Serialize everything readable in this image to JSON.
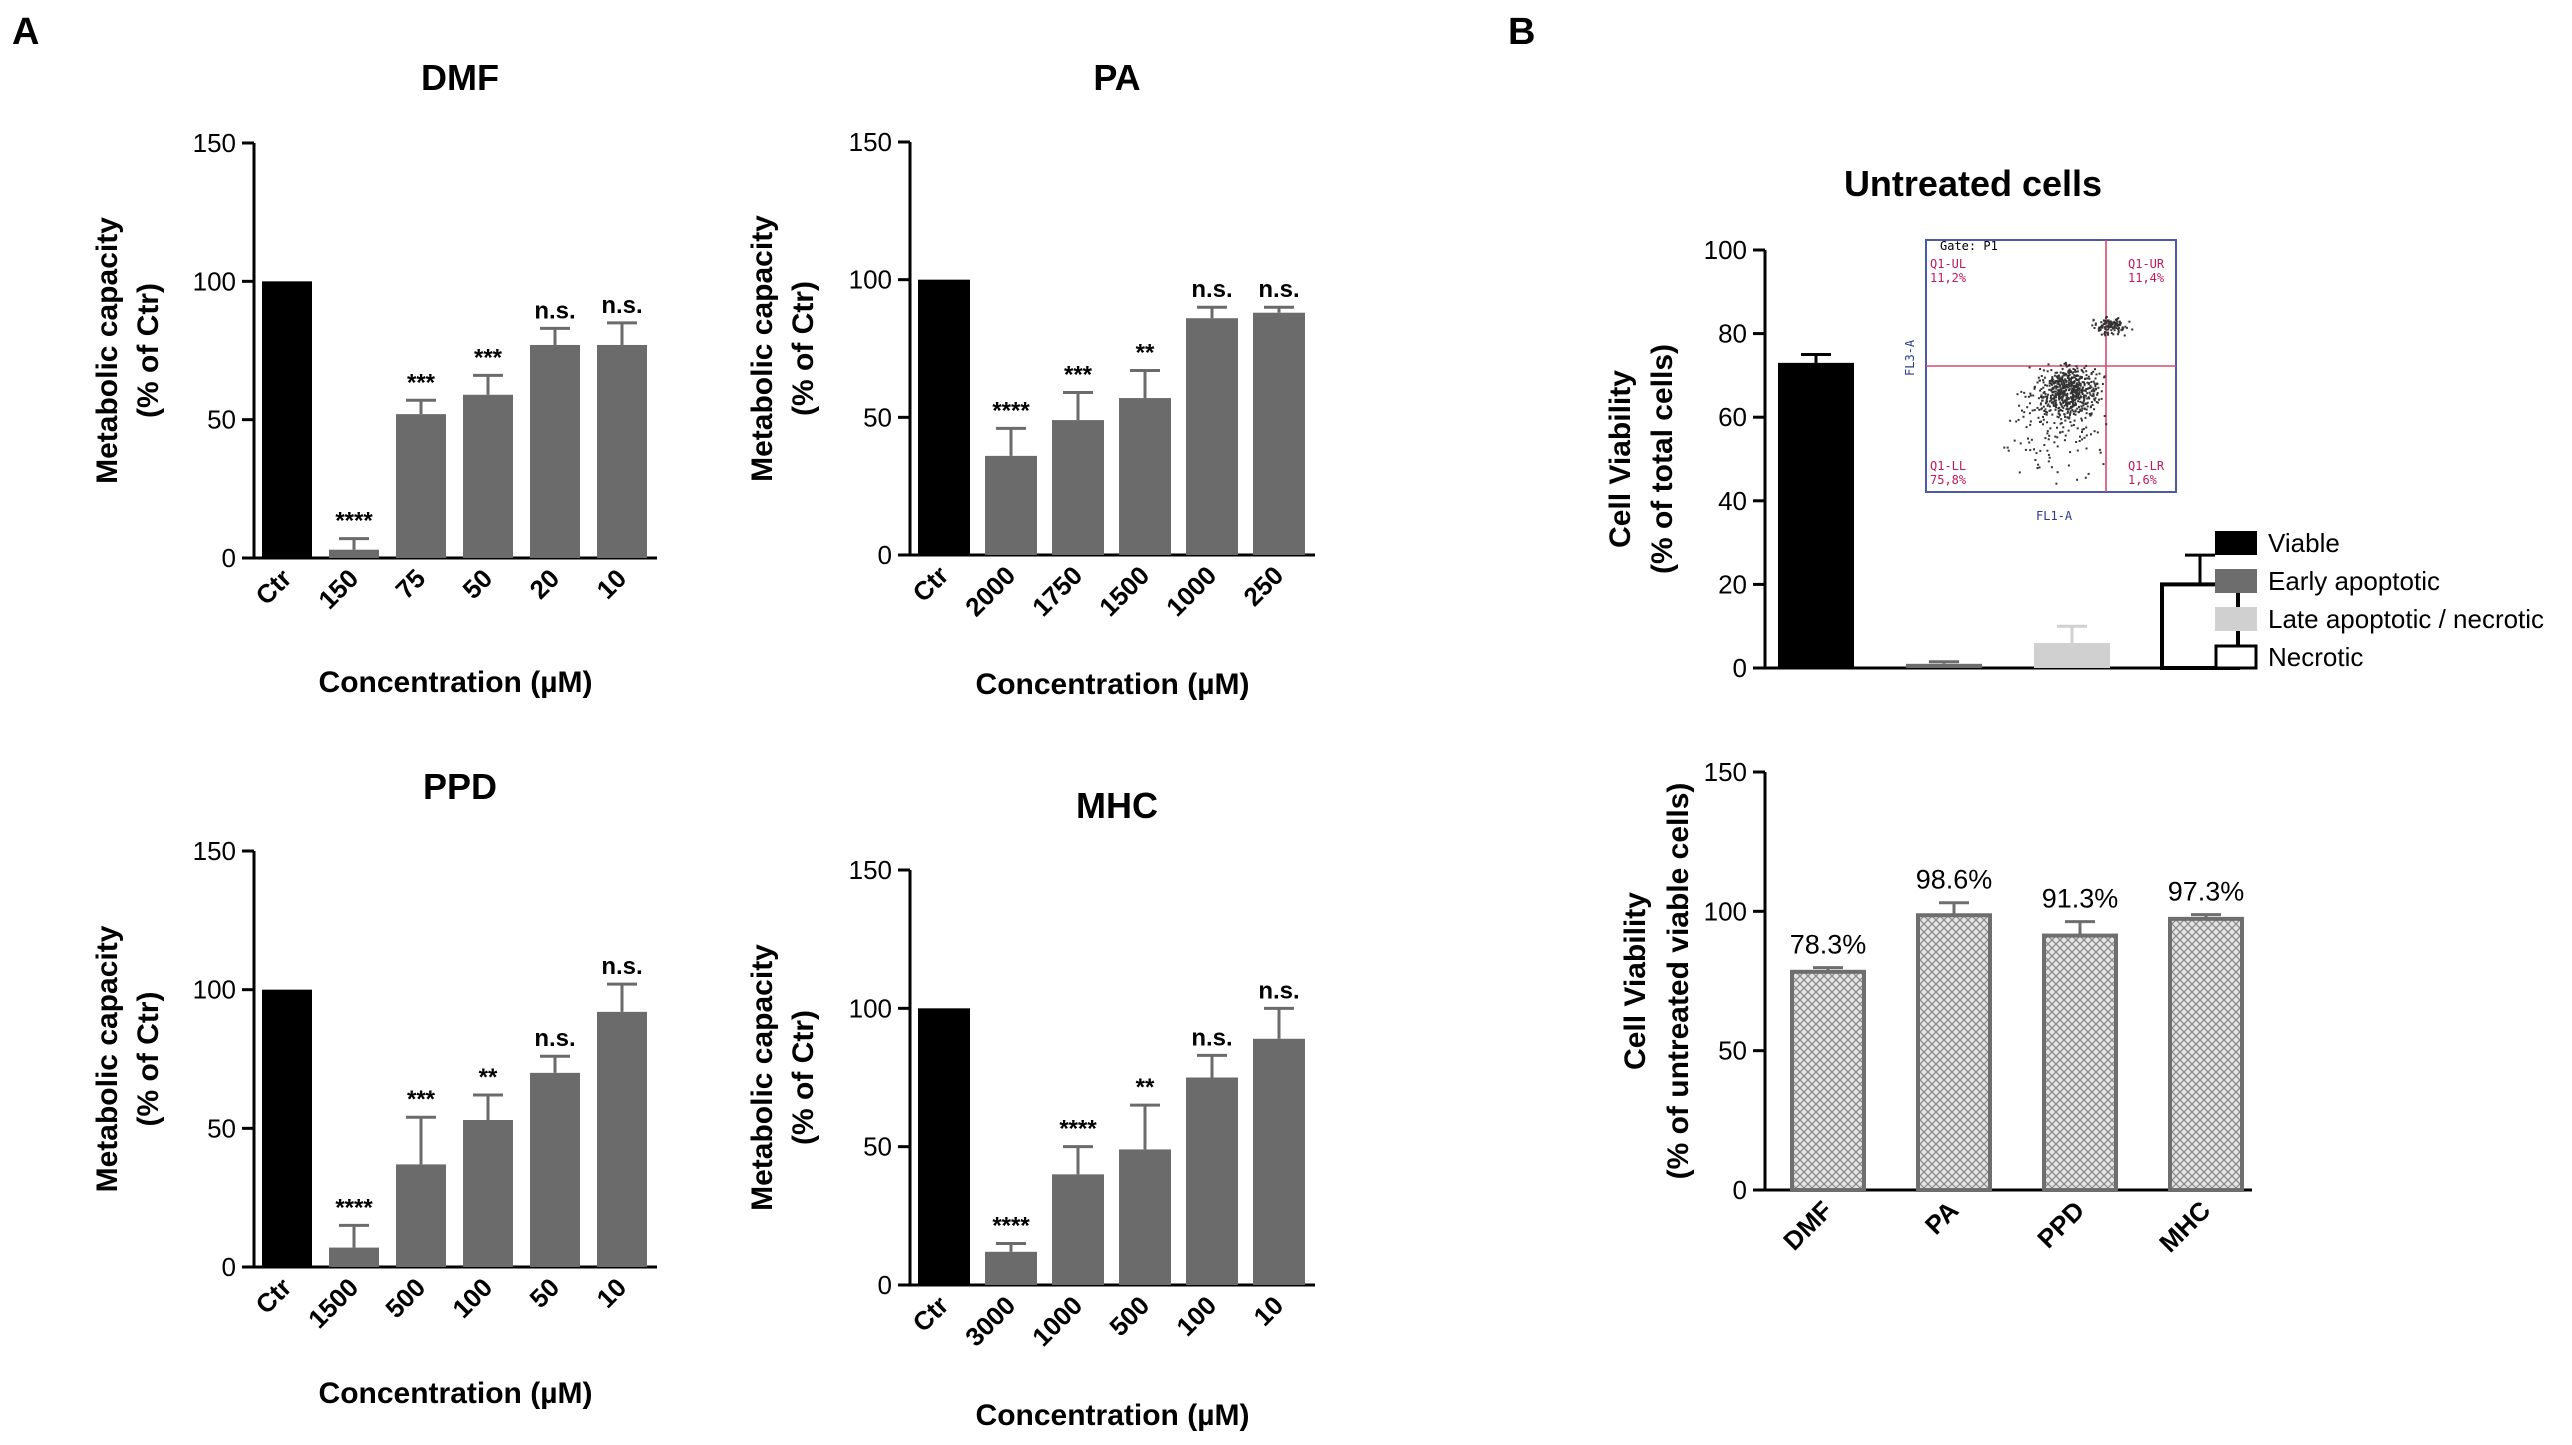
{
  "panel_labels": [
    "A",
    "B"
  ],
  "flow_inset": {
    "gate": "Gate: P1",
    "q_ul": "Q1-UL",
    "q_ul_val": "11,2%",
    "q_ur": "Q1-UR",
    "q_ur_val": "11,4%",
    "q_ll": "Q1-LL",
    "q_ll_val": "75,8%",
    "q_lr": "Q1-LR",
    "q_lr_val": "1,6%",
    "x_axis": "FL1-A",
    "y_axis": "FL3-A"
  },
  "legend": [
    {
      "label": "Viable",
      "color": "#000000"
    },
    {
      "label": "Early apoptotic",
      "color": "#6d6d6d"
    },
    {
      "label": "Late apoptotic / necrotic",
      "color": "#d0d0d0"
    },
    {
      "label": "Necrotic",
      "color": "#ffffff"
    }
  ],
  "chart_data": [
    {
      "id": "dmf",
      "type": "bar",
      "title": "DMF",
      "xlabel": "Concentration (µM)",
      "ylabel_line1": "Metabolic capacity",
      "ylabel_line2": "(% of Ctr)",
      "ylim": [
        0,
        150
      ],
      "yticks": [
        0,
        50,
        100,
        150
      ],
      "categories": [
        "Ctr",
        "150",
        "75",
        "50",
        "20",
        "10"
      ],
      "values": [
        100,
        3,
        52,
        59,
        77,
        77
      ],
      "errors": [
        0,
        4,
        5,
        7,
        6,
        8
      ],
      "significance": [
        "",
        "****",
        "***",
        "***",
        "n.s.",
        "n.s."
      ],
      "colors": [
        "#000000",
        "#6b6b6b",
        "#6b6b6b",
        "#6b6b6b",
        "#6b6b6b",
        "#6b6b6b"
      ]
    },
    {
      "id": "pa",
      "type": "bar",
      "title": "PA",
      "xlabel": "Concentration (µM)",
      "ylabel_line1": "Metabolic capacity",
      "ylabel_line2": "(% of Ctr)",
      "ylim": [
        0,
        150
      ],
      "yticks": [
        0,
        50,
        100,
        150
      ],
      "categories": [
        "Ctr",
        "2000",
        "1750",
        "1500",
        "1000",
        "250"
      ],
      "values": [
        100,
        36,
        49,
        57,
        86,
        88
      ],
      "errors": [
        0,
        10,
        10,
        10,
        4,
        2
      ],
      "significance": [
        "",
        "****",
        "***",
        "**",
        "n.s.",
        "n.s."
      ],
      "colors": [
        "#000000",
        "#6b6b6b",
        "#6b6b6b",
        "#6b6b6b",
        "#6b6b6b",
        "#6b6b6b"
      ]
    },
    {
      "id": "ppd",
      "type": "bar",
      "title": "PPD",
      "xlabel": "Concentration (µM)",
      "ylabel_line1": "Metabolic capacity",
      "ylabel_line2": "(% of Ctr)",
      "ylim": [
        0,
        150
      ],
      "yticks": [
        0,
        50,
        100,
        150
      ],
      "categories": [
        "Ctr",
        "1500",
        "500",
        "100",
        "50",
        "10"
      ],
      "values": [
        100,
        7,
        37,
        53,
        70,
        92
      ],
      "errors": [
        0,
        8,
        17,
        9,
        6,
        10
      ],
      "significance": [
        "",
        "****",
        "***",
        "**",
        "n.s.",
        "n.s."
      ],
      "colors": [
        "#000000",
        "#6b6b6b",
        "#6b6b6b",
        "#6b6b6b",
        "#6b6b6b",
        "#6b6b6b"
      ]
    },
    {
      "id": "mhc",
      "type": "bar",
      "title": "MHC",
      "xlabel": "Concentration (µM)",
      "ylabel_line1": "Metabolic capacity",
      "ylabel_line2": "(% of Ctr)",
      "ylim": [
        0,
        150
      ],
      "yticks": [
        0,
        50,
        100,
        150
      ],
      "categories": [
        "Ctr",
        "3000",
        "1000",
        "500",
        "100",
        "10"
      ],
      "values": [
        100,
        12,
        40,
        49,
        75,
        89
      ],
      "errors": [
        0,
        3,
        10,
        16,
        8,
        11
      ],
      "significance": [
        "",
        "****",
        "****",
        "**",
        "n.s.",
        "n.s."
      ],
      "colors": [
        "#000000",
        "#6b6b6b",
        "#6b6b6b",
        "#6b6b6b",
        "#6b6b6b",
        "#6b6b6b"
      ]
    },
    {
      "id": "untreated",
      "type": "bar",
      "title": "Untreated cells",
      "xlabel": "",
      "ylabel_line1": "Cell Viability",
      "ylabel_line2": "(% of total cells)",
      "ylim": [
        0,
        100
      ],
      "yticks": [
        0,
        20,
        40,
        60,
        80,
        100
      ],
      "categories": [
        "Viable",
        "Early apoptotic",
        "Late apoptotic / necrotic",
        "Necrotic"
      ],
      "values": [
        73,
        1,
        6,
        20
      ],
      "errors": [
        2,
        0.5,
        4,
        7
      ],
      "colors": [
        "#000000",
        "#6d6d6d",
        "#d0d0d0",
        "#ffffff"
      ]
    },
    {
      "id": "viability",
      "type": "bar",
      "title": "",
      "xlabel": "",
      "ylabel_line1": "Cell Viability",
      "ylabel_line2": "(% of untreated viable cells)",
      "ylim": [
        0,
        150
      ],
      "yticks": [
        0,
        50,
        100,
        150
      ],
      "categories": [
        "DMF",
        "PA",
        "PPD",
        "MHC"
      ],
      "values": [
        78.3,
        98.6,
        91.3,
        97.3
      ],
      "errors": [
        1.5,
        4.5,
        5,
        1.5
      ],
      "value_labels": [
        "78.3%",
        "98.6%",
        "91.3%",
        "97.3%"
      ]
    }
  ]
}
